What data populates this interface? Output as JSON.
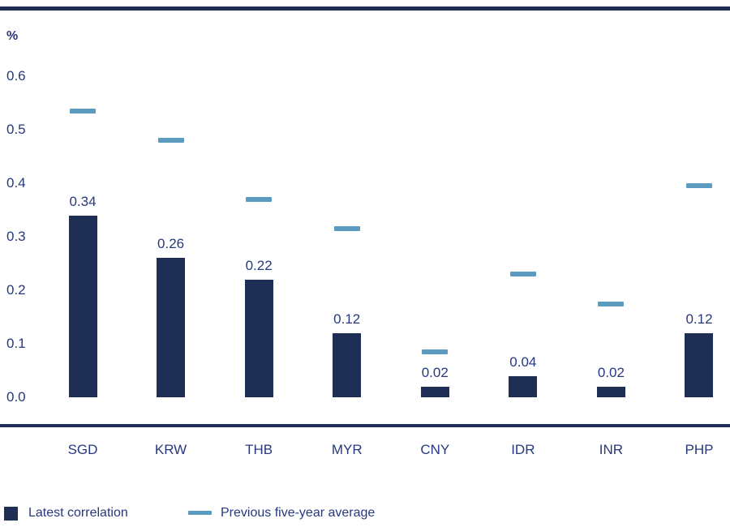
{
  "chart_data": {
    "type": "bar",
    "title": "",
    "ylabel": "%",
    "xlabel": "",
    "categories": [
      "SGD",
      "KRW",
      "THB",
      "MYR",
      "CNY",
      "IDR",
      "INR",
      "PHP"
    ],
    "series": [
      {
        "name": "Latest correlation",
        "mark": "bar",
        "color": "#1f2e55",
        "values": [
          0.34,
          0.26,
          0.22,
          0.12,
          0.02,
          0.04,
          0.02,
          0.12
        ],
        "value_labels": [
          "0.34",
          "0.26",
          "0.22",
          "0.12",
          "0.02",
          "0.04",
          "0.02",
          "0.12"
        ]
      },
      {
        "name": "Previous five-year average",
        "mark": "dash",
        "color": "#5b9bc0",
        "values": [
          0.535,
          0.48,
          0.37,
          0.315,
          0.085,
          0.23,
          0.175,
          0.395
        ]
      }
    ],
    "y_ticks": [
      "0.6",
      "0.5",
      "0.4",
      "0.3",
      "0.2",
      "0.1",
      "0.0"
    ],
    "y_tick_values": [
      0.6,
      0.5,
      0.4,
      0.3,
      0.2,
      0.1,
      0.0
    ],
    "ylim": [
      0,
      0.66
    ],
    "grid": false,
    "legend_position": "bottom-left"
  },
  "colors": {
    "bar_navy": "#1f2e55",
    "dash_blue": "#5b9bc0",
    "axis_line": "#1f2e55",
    "text_blue": "#27387e",
    "background": "#ffffff"
  }
}
